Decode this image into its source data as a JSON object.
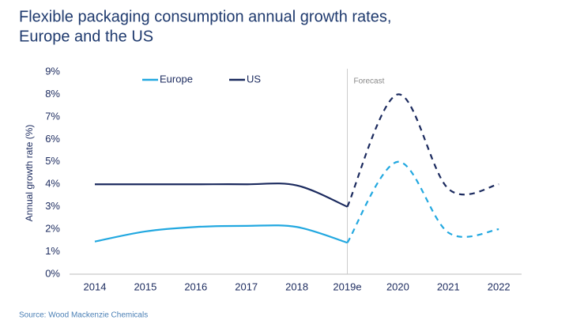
{
  "chart_data": {
    "type": "line",
    "title": "Flexible packaging consumption annual growth rates,",
    "subtitle": "Europe and the US",
    "y_label": "Annual growth rate (%)",
    "source": "Source: Wood Mackenzie Chemicals",
    "categories": [
      "2014",
      "2015",
      "2016",
      "2017",
      "2018",
      "2019e",
      "2020",
      "2021",
      "2022"
    ],
    "series": [
      {
        "name": "Europe",
        "color": "#22a8e0",
        "values": [
          1.45,
          1.9,
          2.1,
          2.15,
          2.1,
          1.4,
          5.0,
          1.85,
          2.0
        ]
      },
      {
        "name": "US",
        "color": "#1b2a5e",
        "values": [
          4.0,
          4.0,
          4.0,
          4.0,
          3.95,
          3.0,
          8.0,
          3.8,
          4.0
        ]
      }
    ],
    "annotations": [
      {
        "text": "Forecast",
        "x": "2019e"
      }
    ],
    "ylim": [
      0,
      9
    ],
    "yticks": [
      {
        "value": 0,
        "label": "0%"
      },
      {
        "value": 1,
        "label": "1%"
      },
      {
        "value": 2,
        "label": "2%"
      },
      {
        "value": 3,
        "label": "3%"
      },
      {
        "value": 4,
        "label": "4%"
      },
      {
        "value": 5,
        "label": "5%"
      },
      {
        "value": 6,
        "label": "6%"
      },
      {
        "value": 7,
        "label": "7%"
      },
      {
        "value": 8,
        "label": "8%"
      },
      {
        "value": 9,
        "label": "9%"
      }
    ],
    "grid": false,
    "legend": "top-left"
  }
}
